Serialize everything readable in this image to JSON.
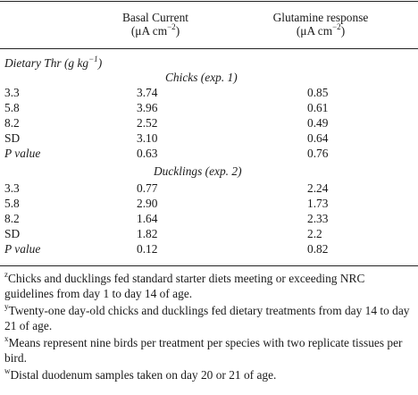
{
  "table": {
    "columns": [
      {
        "title": "Basal Current",
        "unit_prefix": "(μA cm",
        "unit_exp": "−2",
        "unit_suffix": ")"
      },
      {
        "title": "Glutamine response",
        "unit_prefix": "(μA cm",
        "unit_exp": "−2",
        "unit_suffix": ")"
      }
    ],
    "row_header": {
      "prefix": "Dietary Thr (g kg",
      "exp": "−1",
      "suffix": ")"
    },
    "sections": [
      {
        "title": "Chicks (exp. 1)",
        "rows": [
          {
            "label": "3.3",
            "basal": "3.74",
            "glutamine": "0.85"
          },
          {
            "label": "5.8",
            "basal": "3.96",
            "glutamine": "0.61"
          },
          {
            "label": "8.2",
            "basal": "2.52",
            "glutamine": "0.49"
          },
          {
            "label": "SD",
            "basal": "3.10",
            "glutamine": "0.64"
          },
          {
            "label": "P value",
            "basal": "0.63",
            "glutamine": "0.76"
          }
        ]
      },
      {
        "title": "Ducklings (exp. 2)",
        "rows": [
          {
            "label": "3.3",
            "basal": "0.77",
            "glutamine": "2.24"
          },
          {
            "label": "5.8",
            "basal": "2.90",
            "glutamine": "1.73"
          },
          {
            "label": "8.2",
            "basal": "1.64",
            "glutamine": "2.33"
          },
          {
            "label": "SD",
            "basal": "1.82",
            "glutamine": "2.2"
          },
          {
            "label": "P value",
            "basal": "0.12",
            "glutamine": "0.82"
          }
        ]
      }
    ]
  },
  "footnotes": [
    {
      "mark": "z",
      "text": "Chicks and ducklings fed standard starter diets meeting or exceeding NRC guidelines from day 1 to day 14 of age."
    },
    {
      "mark": "y",
      "text": "Twenty-one day-old chicks and ducklings fed dietary treatments from day 14 to day 21 of age."
    },
    {
      "mark": "x",
      "text": "Means represent nine birds per treatment per species with two replicate tissues per bird."
    },
    {
      "mark": "w",
      "text": "Distal duodenum samples taken on day 20 or 21 of age."
    }
  ]
}
